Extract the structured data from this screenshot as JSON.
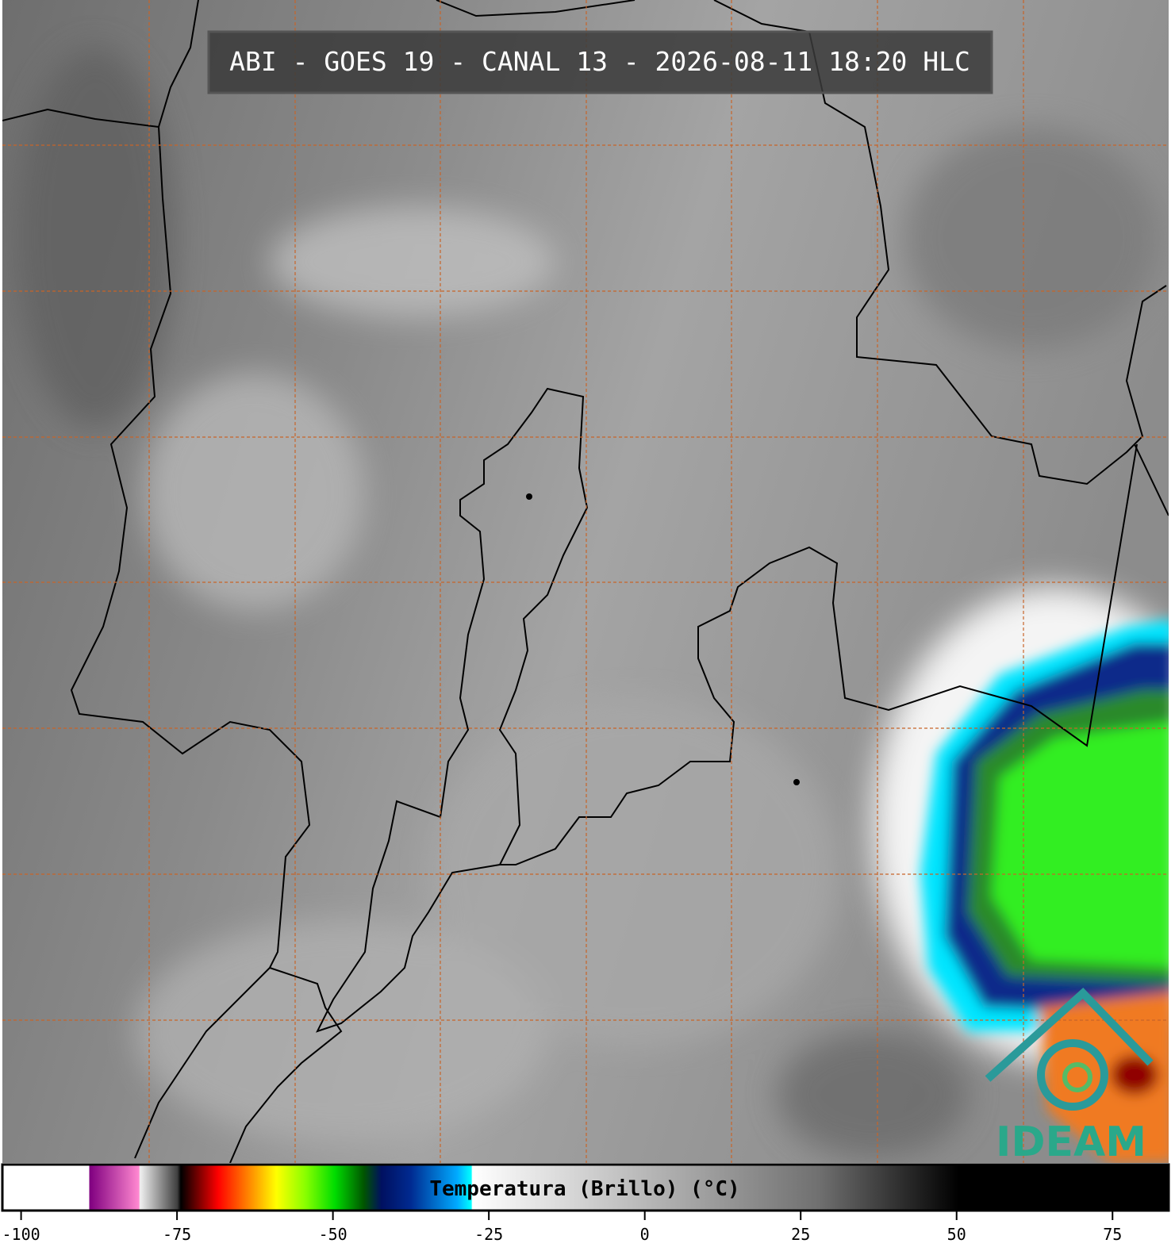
{
  "header": {
    "title": "ABI - GOES 19 - CANAL 13 - 2026-08-11 18:20 HLC"
  },
  "logo": {
    "text": "IDEAM"
  },
  "colorbar": {
    "label": "Temperatura (Brillo) (°C)",
    "lim": [
      -103,
      84
    ],
    "ticks": [
      -100,
      -75,
      -50,
      -25,
      0,
      25,
      50,
      75
    ]
  }
}
